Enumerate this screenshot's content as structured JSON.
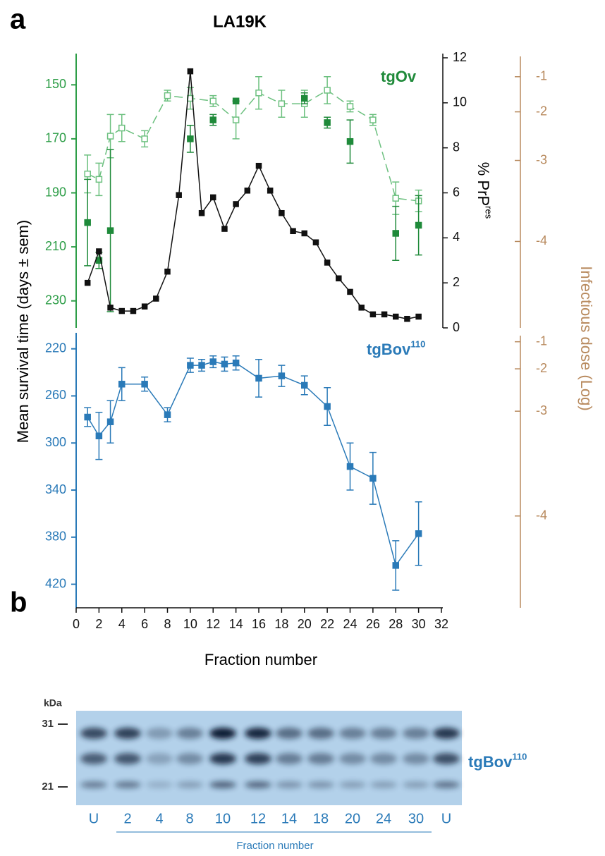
{
  "chart_data": [
    {
      "type": "line",
      "panel_label": "a",
      "title": "LA19K",
      "annotation": "tgOv",
      "annotation_color": "#1f8a3a",
      "xlim": [
        0,
        32
      ],
      "ylabel": "Mean survival time (days ± sem)",
      "ylim": [
        240,
        140
      ],
      "yticks": [
        150,
        170,
        190,
        210,
        230
      ],
      "ycolor": "#2e9e48",
      "y2label": {
        "text": "% PrP",
        "sup": "res"
      },
      "y2lim": [
        0,
        12
      ],
      "y2ticks": [
        0,
        2,
        4,
        6,
        8,
        10,
        12
      ],
      "y3label": "Infectious dose (Log)",
      "y3color": "#b88a5e",
      "y3ticks": [
        {
          "value": 147,
          "label": "-1"
        },
        {
          "value": 160,
          "label": "-2"
        },
        {
          "value": 178,
          "label": "-3"
        },
        {
          "value": 208,
          "label": "-4"
        }
      ],
      "series": [
        {
          "color": "#6cc07f",
          "marker": "open",
          "linestyle": "dashed",
          "x": [
            1,
            2,
            3,
            4,
            6,
            8,
            10,
            12,
            14,
            16,
            18,
            20,
            22,
            24,
            26,
            28,
            30
          ],
          "values": [
            183,
            185,
            169,
            166,
            170,
            154,
            155,
            156,
            163,
            153,
            157,
            157,
            152,
            158,
            163,
            192,
            193
          ],
          "errors": [
            7,
            6,
            8,
            5,
            3,
            2,
            4,
            2,
            7,
            6,
            5,
            5,
            5,
            2,
            2,
            6,
            4
          ]
        },
        {
          "color": "#1f8a3a",
          "marker": "filled",
          "linestyle": "none",
          "x": [
            1,
            2,
            3,
            10,
            12,
            14,
            20,
            22,
            24,
            28,
            30
          ],
          "values": [
            201,
            215,
            204,
            170,
            163,
            156,
            155,
            164,
            171,
            205,
            202
          ],
          "errors": [
            16,
            3,
            30,
            5,
            2,
            0,
            2,
            2,
            8,
            10,
            11
          ]
        },
        {
          "color": "#111111",
          "marker": "filled",
          "linestyle": "solid",
          "axis": "y2",
          "x": [
            1,
            2,
            3,
            4,
            5,
            6,
            7,
            8,
            9,
            10,
            11,
            12,
            13,
            14,
            15,
            16,
            17,
            18,
            19,
            20,
            21,
            22,
            23,
            24,
            25,
            26,
            27,
            28,
            29,
            30
          ],
          "values": [
            2.0,
            3.4,
            0.9,
            0.75,
            0.75,
            0.95,
            1.3,
            2.5,
            5.9,
            11.4,
            5.1,
            5.8,
            4.4,
            5.5,
            6.1,
            7.2,
            6.1,
            5.1,
            4.3,
            4.2,
            3.8,
            2.9,
            2.2,
            1.6,
            0.9,
            0.6,
            0.6,
            0.5,
            0.4,
            0.5
          ]
        }
      ]
    },
    {
      "type": "line",
      "annotation": {
        "text": "tgBov",
        "sup": "110"
      },
      "annotation_color": "#2a7ab8",
      "xlabel": "Fraction number",
      "xlim": [
        0,
        32
      ],
      "xticks": [
        0,
        2,
        4,
        6,
        8,
        10,
        12,
        14,
        16,
        18,
        20,
        22,
        24,
        26,
        28,
        30,
        32
      ],
      "ylim": [
        440,
        210
      ],
      "yticks": [
        220,
        260,
        300,
        340,
        380,
        420
      ],
      "ycolor": "#2a7ab8",
      "y3color": "#b88a5e",
      "y3ticks": [
        {
          "value": 214,
          "label": "-1"
        },
        {
          "value": 237,
          "label": "-2"
        },
        {
          "value": 273,
          "label": "-3"
        },
        {
          "value": 362,
          "label": "-4"
        }
      ],
      "series": [
        {
          "color": "#2a7ab8",
          "marker": "filled",
          "linestyle": "solid",
          "x": [
            1,
            2,
            3,
            4,
            6,
            8,
            10,
            11,
            12,
            13,
            14,
            16,
            18,
            20,
            22,
            24,
            26,
            28,
            30
          ],
          "values": [
            278,
            294,
            282,
            250,
            250,
            276,
            234,
            234,
            231,
            233,
            232,
            245,
            243,
            251,
            269,
            320,
            330,
            404,
            377
          ],
          "errors": [
            8,
            20,
            18,
            14,
            6,
            6,
            6,
            5,
            5,
            6,
            6,
            16,
            9,
            8,
            16,
            20,
            22,
            21,
            27
          ]
        }
      ]
    }
  ],
  "blot": {
    "panel_label": "b",
    "unit": "kDa",
    "markers": [
      31,
      21
    ],
    "lanes": [
      "U",
      "2",
      "4",
      "8",
      "10",
      "12",
      "14",
      "18",
      "20",
      "24",
      "30",
      "U"
    ],
    "label": {
      "text": "tgBov",
      "sup": "110"
    },
    "axis_label": "Fraction number"
  }
}
